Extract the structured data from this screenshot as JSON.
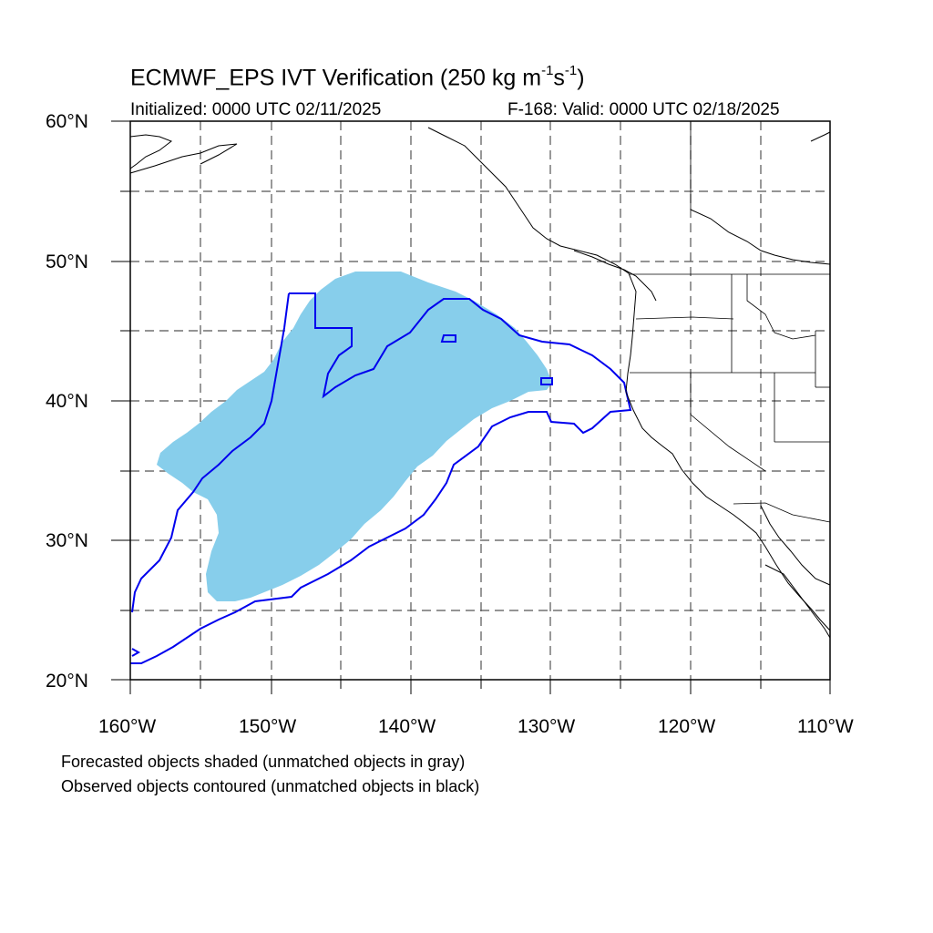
{
  "header": {
    "title_main": "ECMWF_EPS IVT Verification (250 kg m",
    "title_sup1": "-1",
    "title_mid": "s",
    "title_sup2": "-1",
    "title_end": ")",
    "initialized": "Initialized: 0000 UTC 02/11/2025",
    "valid": "F-168: Valid: 0000 UTC 02/18/2025"
  },
  "axes": {
    "lat_labels": [
      "60°N",
      "50°N",
      "40°N",
      "30°N",
      "20°N"
    ],
    "lon_labels": [
      "160°W",
      "150°W",
      "140°W",
      "130°W",
      "120°W",
      "110°W"
    ],
    "lon_range": [
      -160,
      -110
    ],
    "lat_range": [
      20,
      60
    ],
    "gridlines": "dashed, every 5°"
  },
  "legend": {
    "line1": "Forecasted objects shaded (unmatched objects in gray)",
    "line2": "Observed objects contoured (unmatched objects in black)"
  },
  "colors": {
    "forecast_fill": "#87ceeb",
    "observed_contour": "#0000ee",
    "coastline": "#000000",
    "grid": "#555555"
  }
}
